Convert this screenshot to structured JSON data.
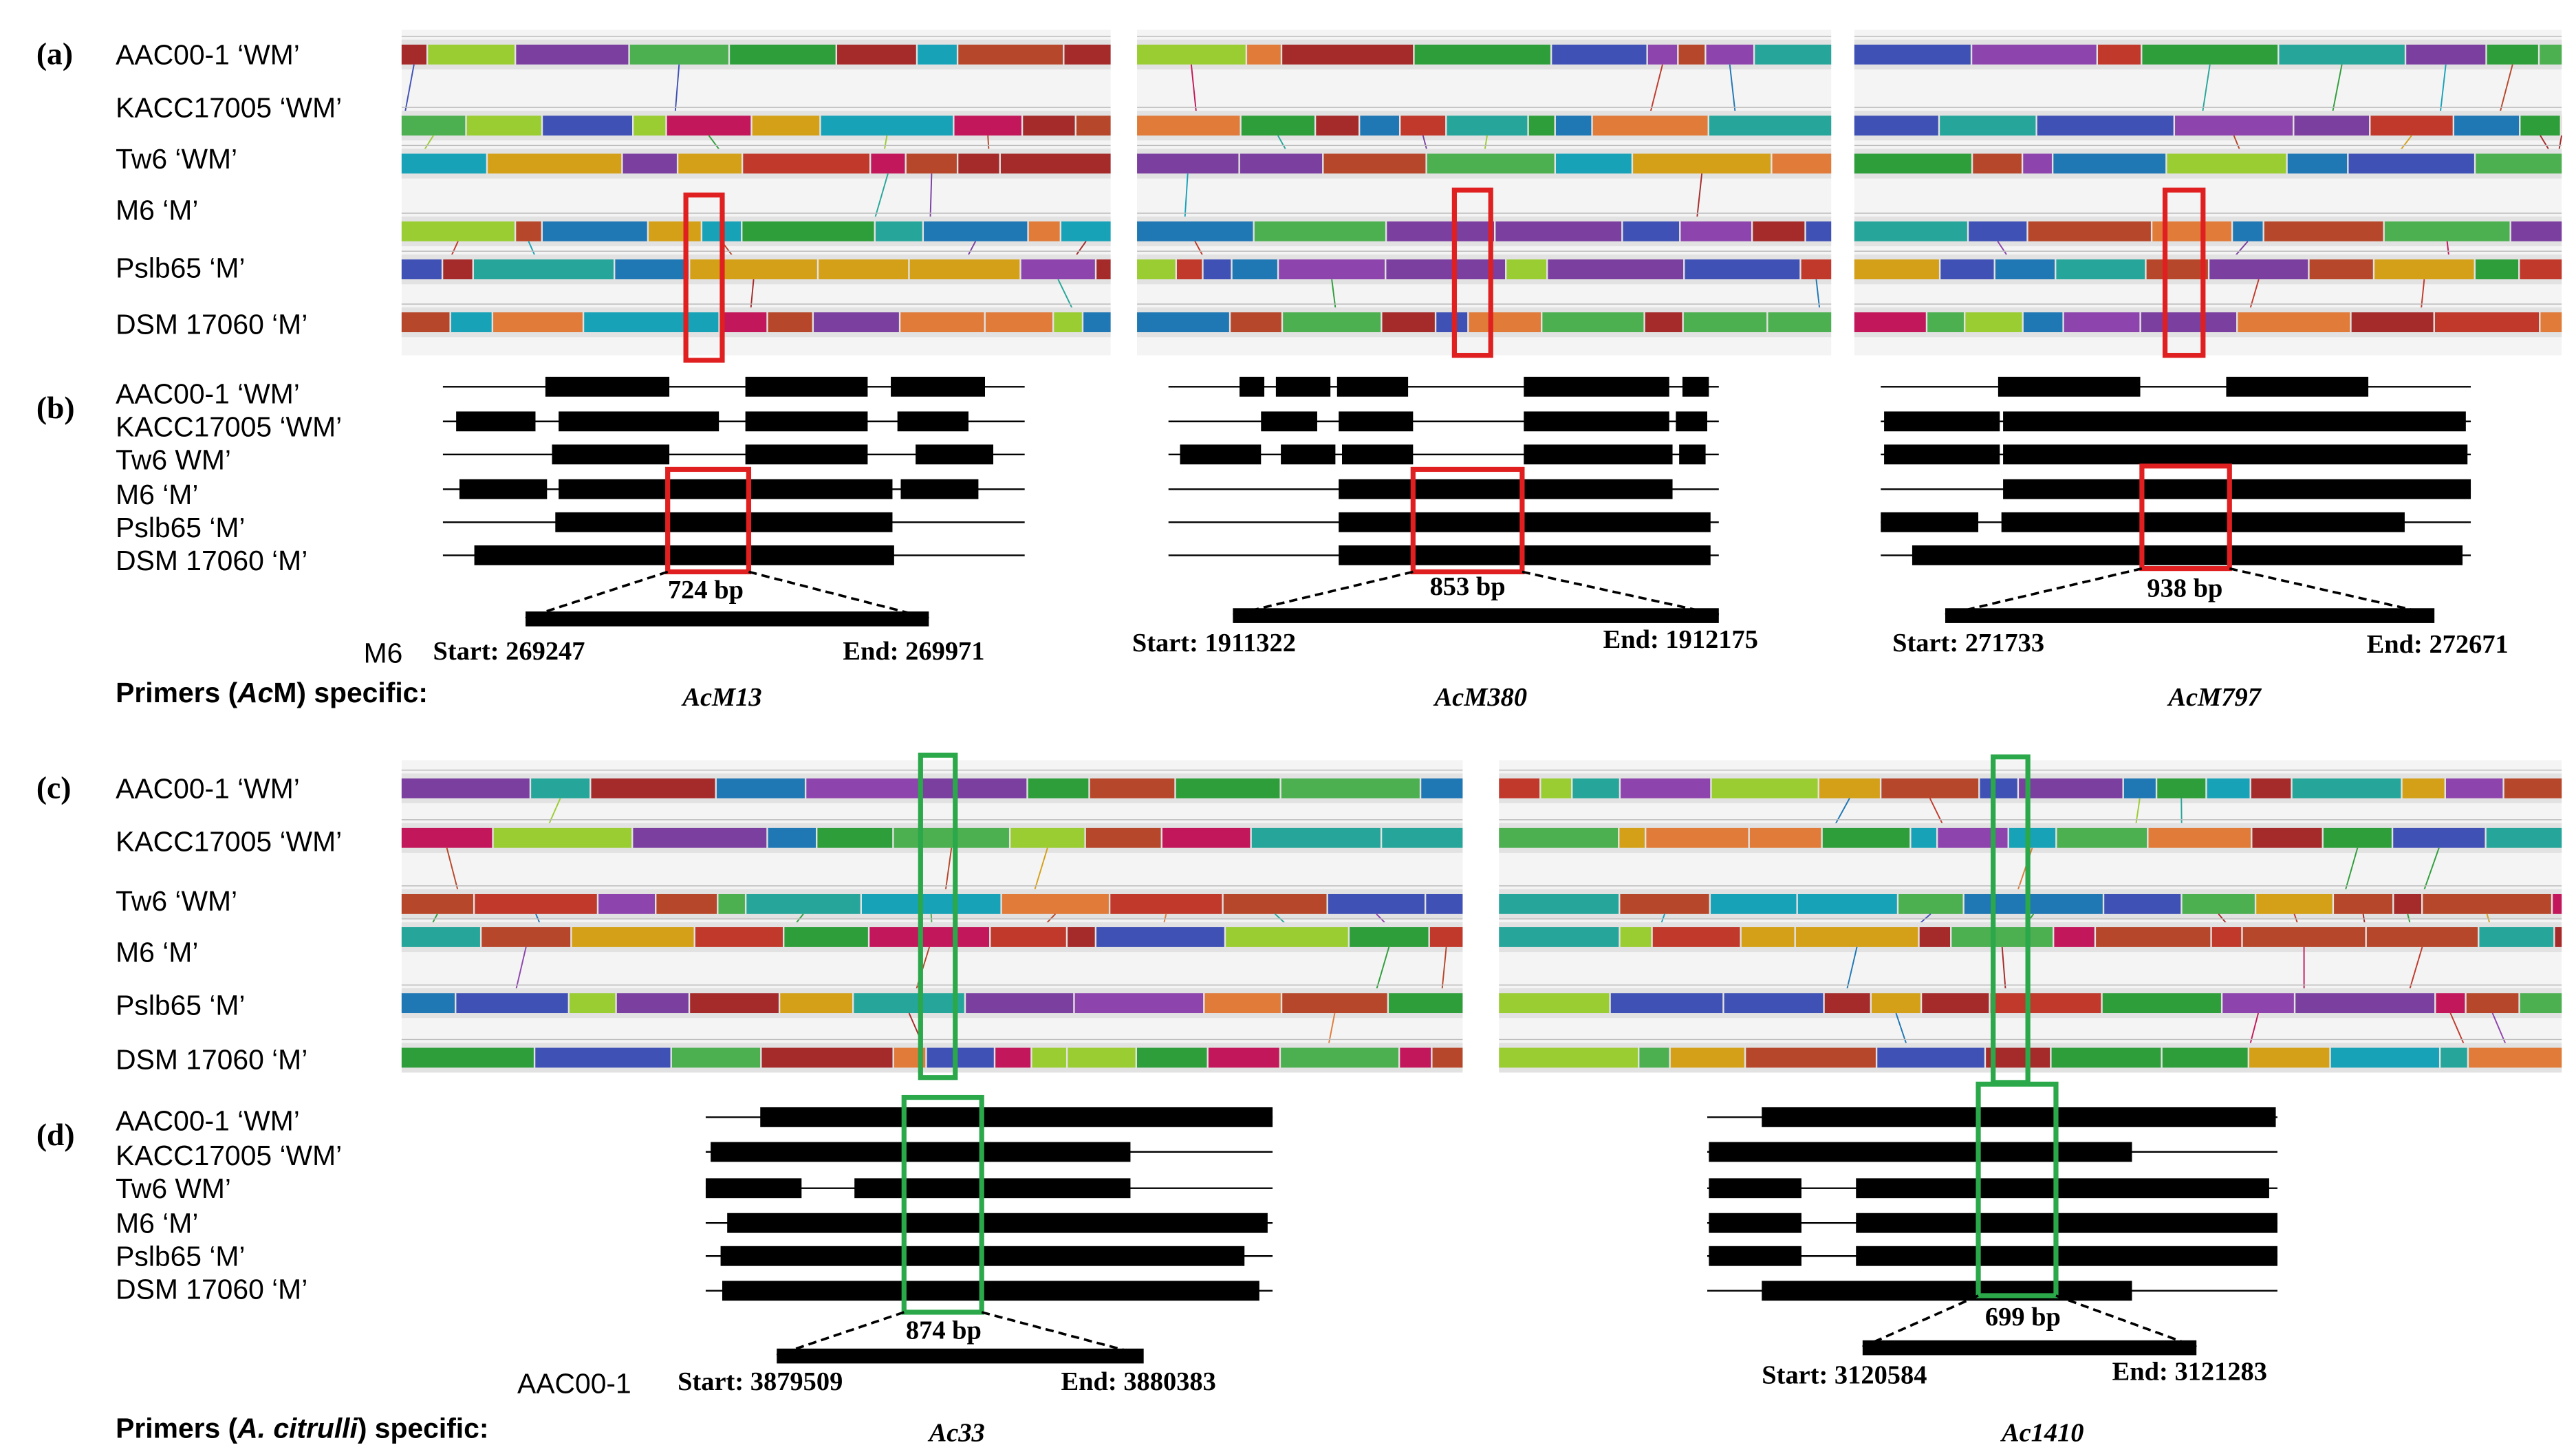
{
  "top": {
    "alignment_label": "(a)",
    "map_label": "(b)",
    "alignment_strains": [
      "AAC00-1 ‘WM’",
      "KACC17005 ‘WM’",
      "Tw6 ‘WM’",
      "M6 ‘M’",
      "Pslb65 ‘M’",
      "DSM 17060 ‘M’"
    ],
    "map_strains": [
      "AAC00-1 ‘WM’",
      "KACC17005 ‘WM’",
      "Tw6 WM’",
      "M6 ‘M’",
      "Pslb65 ‘M’",
      "DSM 17060 ‘M’"
    ],
    "reference": "M6",
    "primer_prefix": "Primers (",
    "primer_italic": "Ac",
    "primer_suffix": "M) specific:",
    "loci": [
      {
        "size": "724 bp",
        "start": "Start: 269247",
        "end": "End: 269971",
        "primer": "AcM13"
      },
      {
        "size": "853 bp",
        "start": "Start: 1911322",
        "end": "End: 1912175",
        "primer": "AcM380"
      },
      {
        "size": "938 bp",
        "start": "Start: 271733",
        "end": "End: 272671",
        "primer": "AcM797"
      }
    ]
  },
  "bottom": {
    "alignment_label": "(c)",
    "map_label": "(d)",
    "alignment_strains": [
      "AAC00-1 ‘WM’",
      "KACC17005 ‘WM’",
      "Tw6 ‘WM’",
      "M6 ‘M’",
      "Pslb65 ‘M’",
      "DSM 17060 ‘M’"
    ],
    "map_strains": [
      "AAC00-1 ‘WM’",
      "KACC17005 ‘WM’",
      "Tw6 WM’",
      "M6 ‘M’",
      "Pslb65 ‘M’",
      "DSM 17060 ‘M’"
    ],
    "reference": "AAC00-1",
    "primer_prefix": "Primers (",
    "primer_italic": "A. citrulli",
    "primer_suffix": ") specific:",
    "loci": [
      {
        "size": "874 bp",
        "start": "Start: 3879509",
        "end": "End: 3880383",
        "primer": "Ac33"
      },
      {
        "size": "699 bp",
        "start": "Start: 3120584",
        "end": "End: 3121283",
        "primer": "Ac1410"
      }
    ]
  }
}
